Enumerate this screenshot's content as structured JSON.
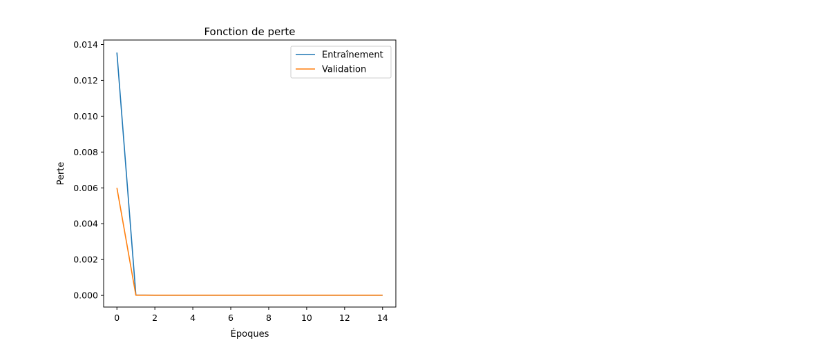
{
  "chart_data": {
    "type": "line",
    "title": "Fonction de perte",
    "xlabel": "Époques",
    "ylabel": "Perte",
    "xlim": [
      -0.7,
      14.7
    ],
    "ylim": [
      -0.00065,
      0.01425
    ],
    "xticks": [
      0,
      2,
      4,
      6,
      8,
      10,
      12,
      14
    ],
    "xtick_labels": [
      "0",
      "2",
      "4",
      "6",
      "8",
      "10",
      "12",
      "14"
    ],
    "yticks": [
      0.0,
      0.002,
      0.004,
      0.006,
      0.008,
      0.01,
      0.012,
      0.014
    ],
    "ytick_labels": [
      "0.000",
      "0.002",
      "0.004",
      "0.006",
      "0.008",
      "0.010",
      "0.012",
      "0.014"
    ],
    "grid": false,
    "legend_position": "top-right",
    "x": [
      0,
      1,
      2,
      3,
      4,
      5,
      6,
      7,
      8,
      9,
      10,
      11,
      12,
      13,
      14
    ],
    "series": [
      {
        "name": "Entraînement",
        "color": "#1f77b4",
        "values": [
          0.01355,
          2e-05,
          1e-05,
          1e-05,
          1e-05,
          1e-05,
          1e-05,
          1e-05,
          1e-05,
          1e-05,
          1e-05,
          1e-05,
          1e-05,
          1e-05,
          1e-05
        ]
      },
      {
        "name": "Validation",
        "color": "#ff7f0e",
        "values": [
          0.006,
          1e-05,
          1e-05,
          1e-05,
          1e-05,
          1e-05,
          1e-05,
          1e-05,
          1e-05,
          1e-05,
          1e-05,
          1e-05,
          1e-05,
          1e-05,
          1e-05
        ]
      }
    ]
  }
}
